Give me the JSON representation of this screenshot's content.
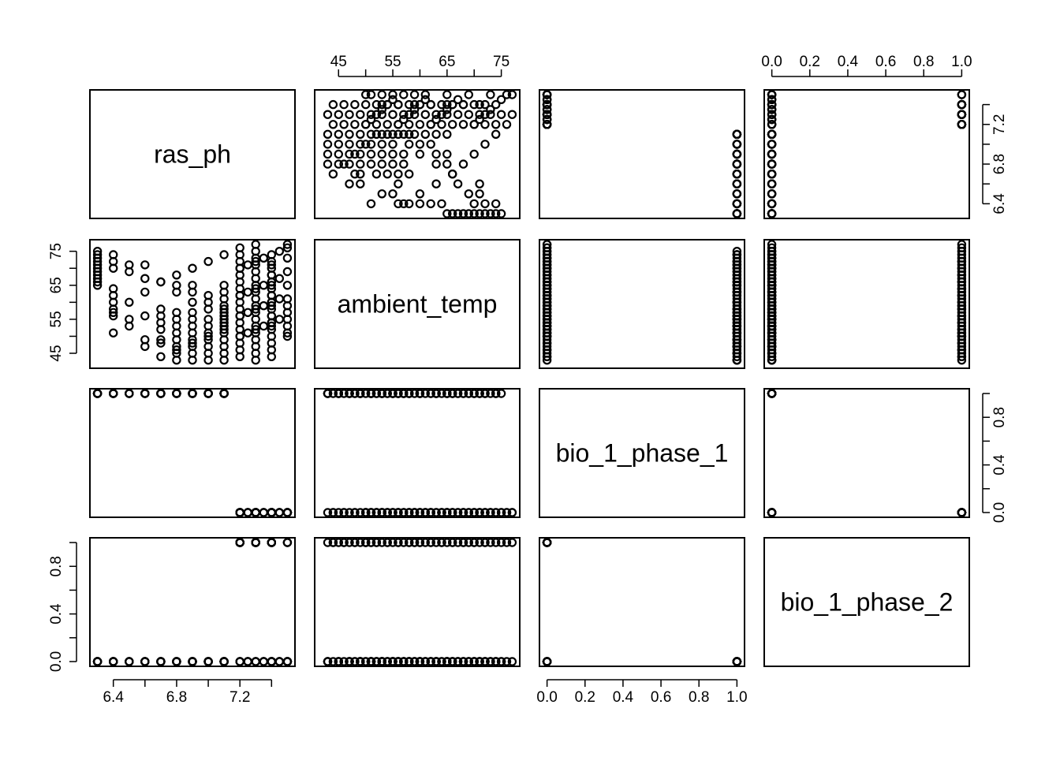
{
  "colors": {
    "background": "#ffffff",
    "ink": "#000000"
  },
  "chart_data": {
    "type": "scatter",
    "matrix_type": "pairs",
    "point_style": "open-circle",
    "variables": [
      {
        "name": "ras_ph",
        "range": [
          6.3,
          7.5
        ],
        "ticks": [
          6.4,
          6.6,
          6.8,
          7.0,
          7.2,
          7.4
        ],
        "tick_labels": [
          "6.4",
          "6.8",
          "7.2"
        ]
      },
      {
        "name": "ambient_temp",
        "range": [
          42,
          77
        ],
        "ticks": [
          45,
          50,
          55,
          60,
          65,
          70,
          75
        ],
        "tick_labels": [
          "45",
          "55",
          "65",
          "75"
        ]
      },
      {
        "name": "bio_1_phase_1",
        "range": [
          0,
          1
        ],
        "ticks": [
          0,
          0.2,
          0.4,
          0.6,
          0.8,
          1.0
        ],
        "tick_labels": [
          "0.0",
          "0.2",
          "0.4",
          "0.6",
          "0.8",
          "1.0"
        ]
      },
      {
        "name": "bio_1_phase_2",
        "range": [
          0,
          1
        ],
        "ticks": [
          0,
          0.2,
          0.4,
          0.6,
          0.8,
          1.0
        ],
        "tick_labels": [
          "0.0",
          "0.2",
          "0.4",
          "0.6",
          "0.8",
          "1.0"
        ]
      }
    ],
    "axes": {
      "top": [
        {
          "col": 1,
          "var": 1,
          "labels": [
            "45",
            "55",
            "65",
            "75"
          ]
        },
        {
          "col": 3,
          "var": 3,
          "labels": [
            "0.0",
            "0.2",
            "0.4",
            "0.6",
            "0.8",
            "1.0"
          ]
        }
      ],
      "bottom": [
        {
          "col": 0,
          "var": 0,
          "labels": [
            "6.4",
            "6.8",
            "7.2"
          ]
        },
        {
          "col": 2,
          "var": 2,
          "labels": [
            "0.0",
            "0.2",
            "0.4",
            "0.6",
            "0.8",
            "1.0"
          ]
        }
      ],
      "left": [
        {
          "row": 1,
          "var": 1,
          "labels": [
            "45",
            "55",
            "65",
            "75"
          ]
        },
        {
          "row": 3,
          "var": 3,
          "labels": [
            "0.0",
            "0.4",
            "0.8"
          ]
        }
      ],
      "right": [
        {
          "row": 0,
          "var": 0,
          "labels": [
            "6.4",
            "6.8",
            "7.2"
          ]
        },
        {
          "row": 2,
          "var": 2,
          "labels": [
            "0.0",
            "0.4",
            "0.8"
          ]
        }
      ]
    },
    "observations": [
      [
        6.3,
        66,
        1,
        0
      ],
      [
        6.3,
        68,
        1,
        0
      ],
      [
        6.3,
        70,
        1,
        0
      ],
      [
        6.3,
        72,
        1,
        0
      ],
      [
        6.3,
        74,
        1,
        0
      ],
      [
        6.3,
        75,
        1,
        0
      ],
      [
        6.4,
        51,
        1,
        0
      ],
      [
        6.4,
        56,
        1,
        0
      ],
      [
        6.4,
        58,
        1,
        0
      ],
      [
        6.4,
        60,
        1,
        0
      ],
      [
        6.4,
        62,
        1,
        0
      ],
      [
        6.4,
        64,
        1,
        0
      ],
      [
        6.4,
        70,
        1,
        0
      ],
      [
        6.4,
        72,
        1,
        0
      ],
      [
        6.4,
        74,
        1,
        0
      ],
      [
        6.5,
        53,
        1,
        0
      ],
      [
        6.5,
        55,
        1,
        0
      ],
      [
        6.5,
        69,
        1,
        0
      ],
      [
        6.5,
        71,
        1,
        0
      ],
      [
        6.6,
        47,
        1,
        0
      ],
      [
        6.6,
        49,
        1,
        0
      ],
      [
        6.6,
        56,
        1,
        0
      ],
      [
        6.6,
        67,
        1,
        0
      ],
      [
        6.6,
        71,
        1,
        0
      ],
      [
        6.7,
        48,
        1,
        0
      ],
      [
        6.7,
        49,
        1,
        0
      ],
      [
        6.7,
        52,
        1,
        0
      ],
      [
        6.7,
        54,
        1,
        0
      ],
      [
        6.7,
        56,
        1,
        0
      ],
      [
        6.7,
        58,
        1,
        0
      ],
      [
        6.7,
        66,
        1,
        0
      ],
      [
        6.8,
        43,
        1,
        0
      ],
      [
        6.8,
        45,
        1,
        0
      ],
      [
        6.8,
        47,
        1,
        0
      ],
      [
        6.8,
        49,
        1,
        0
      ],
      [
        6.8,
        51,
        1,
        0
      ],
      [
        6.8,
        53,
        1,
        0
      ],
      [
        6.8,
        55,
        1,
        0
      ],
      [
        6.8,
        57,
        1,
        0
      ],
      [
        6.8,
        63,
        1,
        0
      ],
      [
        6.8,
        65,
        1,
        0
      ],
      [
        6.9,
        43,
        1,
        0
      ],
      [
        6.9,
        45,
        1,
        0
      ],
      [
        6.9,
        47,
        1,
        0
      ],
      [
        6.9,
        49,
        1,
        0
      ],
      [
        6.9,
        51,
        1,
        0
      ],
      [
        6.9,
        53,
        1,
        0
      ],
      [
        6.9,
        55,
        1,
        0
      ],
      [
        6.9,
        57,
        1,
        0
      ],
      [
        6.9,
        60,
        1,
        0
      ],
      [
        6.9,
        63,
        1,
        0
      ],
      [
        6.9,
        65,
        1,
        0
      ],
      [
        7.0,
        43,
        1,
        0
      ],
      [
        7.0,
        45,
        1,
        0
      ],
      [
        7.0,
        47,
        1,
        0
      ],
      [
        7.0,
        49,
        1,
        0
      ],
      [
        7.0,
        51,
        1,
        0
      ],
      [
        7.0,
        53,
        1,
        0
      ],
      [
        7.0,
        55,
        1,
        0
      ],
      [
        7.0,
        58,
        1,
        0
      ],
      [
        7.0,
        60,
        1,
        0
      ],
      [
        7.0,
        62,
        1,
        0
      ],
      [
        7.1,
        43,
        1,
        0
      ],
      [
        7.1,
        45,
        1,
        0
      ],
      [
        7.1,
        47,
        1,
        0
      ],
      [
        7.1,
        49,
        1,
        0
      ],
      [
        7.1,
        51,
        1,
        0
      ],
      [
        7.1,
        53,
        1,
        0
      ],
      [
        7.1,
        55,
        1,
        0
      ],
      [
        7.1,
        57,
        1,
        0
      ],
      [
        7.1,
        59,
        1,
        0
      ],
      [
        7.1,
        61,
        1,
        0
      ],
      [
        7.1,
        63,
        1,
        0
      ],
      [
        7.1,
        65,
        1,
        0
      ],
      [
        7.2,
        44,
        0,
        1
      ],
      [
        7.2,
        46,
        0,
        1
      ],
      [
        7.2,
        48,
        0,
        1
      ],
      [
        7.2,
        50,
        0,
        1
      ],
      [
        7.2,
        52,
        0,
        1
      ],
      [
        7.2,
        54,
        0,
        1
      ],
      [
        7.2,
        56,
        0,
        1
      ],
      [
        7.2,
        58,
        0,
        1
      ],
      [
        7.2,
        60,
        0,
        1
      ],
      [
        7.2,
        62,
        0,
        1
      ],
      [
        7.2,
        64,
        0,
        1
      ],
      [
        7.2,
        66,
        0,
        1
      ],
      [
        7.2,
        68,
        0,
        1
      ],
      [
        7.2,
        70,
        0,
        1
      ],
      [
        7.2,
        72,
        0,
        1
      ],
      [
        7.2,
        74,
        0,
        1
      ],
      [
        7.2,
        76,
        0,
        1
      ],
      [
        7.3,
        43,
        0,
        1
      ],
      [
        7.3,
        45,
        0,
        1
      ],
      [
        7.3,
        47,
        0,
        1
      ],
      [
        7.3,
        49,
        0,
        1
      ],
      [
        7.3,
        51,
        0,
        1
      ],
      [
        7.3,
        53,
        0,
        1
      ],
      [
        7.3,
        55,
        0,
        1
      ],
      [
        7.3,
        57,
        0,
        1
      ],
      [
        7.3,
        59,
        0,
        1
      ],
      [
        7.3,
        61,
        0,
        1
      ],
      [
        7.3,
        63,
        0,
        1
      ],
      [
        7.3,
        65,
        0,
        1
      ],
      [
        7.3,
        67,
        0,
        1
      ],
      [
        7.3,
        69,
        0,
        1
      ],
      [
        7.3,
        71,
        0,
        1
      ],
      [
        7.3,
        73,
        0,
        1
      ],
      [
        7.3,
        75,
        0,
        1
      ],
      [
        7.3,
        77,
        0,
        1
      ],
      [
        7.4,
        44,
        0,
        1
      ],
      [
        7.4,
        46,
        0,
        1
      ],
      [
        7.4,
        48,
        0,
        1
      ],
      [
        7.4,
        50,
        0,
        1
      ],
      [
        7.4,
        52,
        0,
        1
      ],
      [
        7.4,
        54,
        0,
        1
      ],
      [
        7.4,
        56,
        0,
        1
      ],
      [
        7.4,
        58,
        0,
        1
      ],
      [
        7.4,
        60,
        0,
        1
      ],
      [
        7.4,
        62,
        0,
        1
      ],
      [
        7.4,
        64,
        0,
        1
      ],
      [
        7.4,
        66,
        0,
        1
      ],
      [
        7.4,
        68,
        0,
        1
      ],
      [
        7.4,
        70,
        0,
        1
      ],
      [
        7.4,
        72,
        0,
        1
      ],
      [
        7.5,
        50,
        0,
        1
      ],
      [
        7.5,
        51,
        0,
        1
      ],
      [
        7.5,
        59,
        0,
        1
      ],
      [
        7.2,
        50,
        0,
        0
      ],
      [
        7.25,
        51,
        0,
        0
      ],
      [
        7.3,
        52,
        0,
        0
      ],
      [
        7.35,
        53,
        0,
        0
      ],
      [
        7.4,
        54,
        0,
        0
      ],
      [
        7.45,
        55,
        0,
        0
      ],
      [
        7.5,
        55,
        0,
        0
      ],
      [
        7.2,
        56,
        0,
        0
      ],
      [
        7.25,
        57,
        0,
        0
      ],
      [
        7.3,
        58,
        0,
        0
      ],
      [
        7.35,
        59,
        0,
        0
      ],
      [
        7.4,
        60,
        0,
        0
      ],
      [
        7.45,
        61,
        0,
        0
      ],
      [
        7.2,
        62,
        0,
        0
      ],
      [
        7.25,
        63,
        0,
        0
      ],
      [
        7.3,
        64,
        0,
        0
      ],
      [
        7.35,
        65,
        0,
        0
      ],
      [
        7.4,
        66,
        0,
        0
      ],
      [
        7.45,
        67,
        0,
        0
      ],
      [
        7.2,
        70,
        0,
        0
      ],
      [
        7.25,
        71,
        0,
        0
      ],
      [
        7.3,
        72,
        0,
        0
      ],
      [
        7.35,
        73,
        0,
        0
      ],
      [
        7.4,
        74,
        0,
        0
      ],
      [
        7.45,
        75,
        0,
        0
      ],
      [
        7.5,
        76,
        0,
        0
      ],
      [
        7.4,
        53,
        0,
        0
      ],
      [
        7.4,
        56,
        0,
        0
      ],
      [
        7.4,
        59,
        0,
        0
      ],
      [
        7.4,
        62,
        0,
        0
      ],
      [
        7.4,
        65,
        0,
        0
      ],
      [
        7.4,
        68,
        0,
        0
      ],
      [
        7.4,
        71,
        0,
        0
      ],
      [
        7.5,
        53,
        0,
        0
      ],
      [
        7.5,
        57,
        0,
        0
      ],
      [
        7.5,
        61,
        0,
        0
      ],
      [
        7.5,
        65,
        0,
        0
      ],
      [
        7.5,
        69,
        0,
        0
      ],
      [
        7.5,
        73,
        0,
        0
      ],
      [
        7.5,
        77,
        0,
        0
      ],
      [
        6.4,
        57,
        1,
        0
      ],
      [
        6.5,
        60,
        1,
        0
      ],
      [
        6.6,
        63,
        1,
        0
      ],
      [
        6.7,
        66,
        1,
        0
      ],
      [
        6.8,
        68,
        1,
        0
      ],
      [
        6.9,
        70,
        1,
        0
      ],
      [
        7.0,
        72,
        1,
        0
      ],
      [
        7.1,
        74,
        1,
        0
      ],
      [
        6.3,
        65,
        1,
        0
      ],
      [
        6.3,
        67,
        1,
        0
      ],
      [
        6.3,
        69,
        1,
        0
      ],
      [
        6.3,
        71,
        1,
        0
      ],
      [
        6.3,
        73,
        1,
        0
      ],
      [
        7.1,
        52,
        1,
        0
      ],
      [
        7.1,
        54,
        1,
        0
      ],
      [
        7.1,
        56,
        1,
        0
      ],
      [
        7.1,
        58,
        1,
        0
      ],
      [
        7.0,
        50,
        1,
        0
      ],
      [
        6.9,
        48,
        1,
        0
      ],
      [
        6.8,
        46,
        1,
        0
      ],
      [
        6.7,
        44,
        1,
        0
      ]
    ]
  }
}
